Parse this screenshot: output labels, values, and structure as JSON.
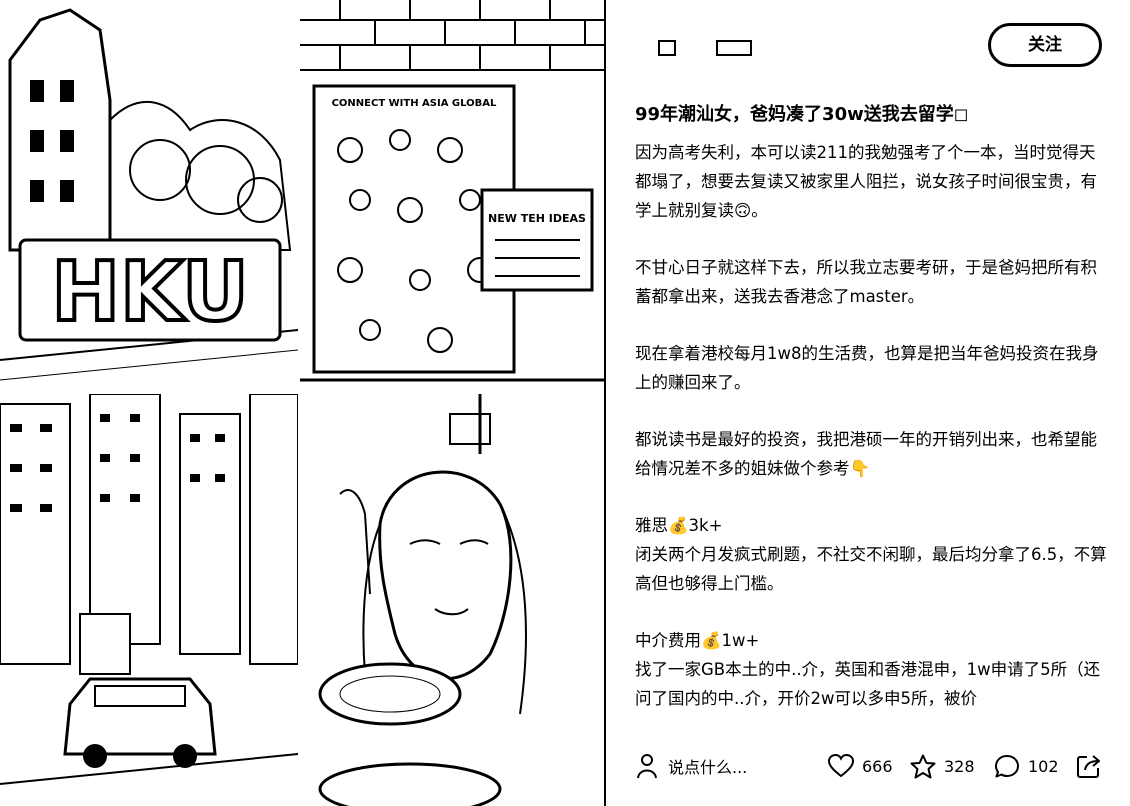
{
  "header": {
    "follow_label": "关注"
  },
  "post": {
    "title": "99年潮汕女，爸妈凑了30w送我去留学◻",
    "paragraphs": [
      "因为高考失利，本可以读211的我勉强考了个一本，当时觉得天都塌了，想要去复读又被家里人阻拦，说女孩子时间很宝贵，有学上就别复读🙃。",
      "不甘心日子就这样下去，所以我立志要考研，于是爸妈把所有积蓄都拿出来，送我去香港念了master。",
      "现在拿着港校每月1w8的生活费，也算是把当年爸妈投资在我身上的赚回来了。",
      "都说读书是最好的投资，我把港硕一年的开销列出来，也希望能给情况差不多的姐妹做个参考👇",
      "雅思💰3k+\n闭关两个月发疯式刷题，不社交不闲聊，最后均分拿了6.5，不算高但也够得上门槛。",
      "中介费用💰1w+\n找了一家GB本土的中..介，英国和香港混申，1w申请了5所（还问了国内的中..介，开价2w可以多申5所，被价"
    ]
  },
  "collage": {
    "sign_text": "HKU",
    "poster_title": "CONNECT WITH ASIA GLOBAL",
    "poster_side": "NEW TEH IDEAS"
  },
  "bottom": {
    "comment_placeholder": "说点什么...",
    "likes": "666",
    "stars": "328",
    "comments": "102"
  }
}
